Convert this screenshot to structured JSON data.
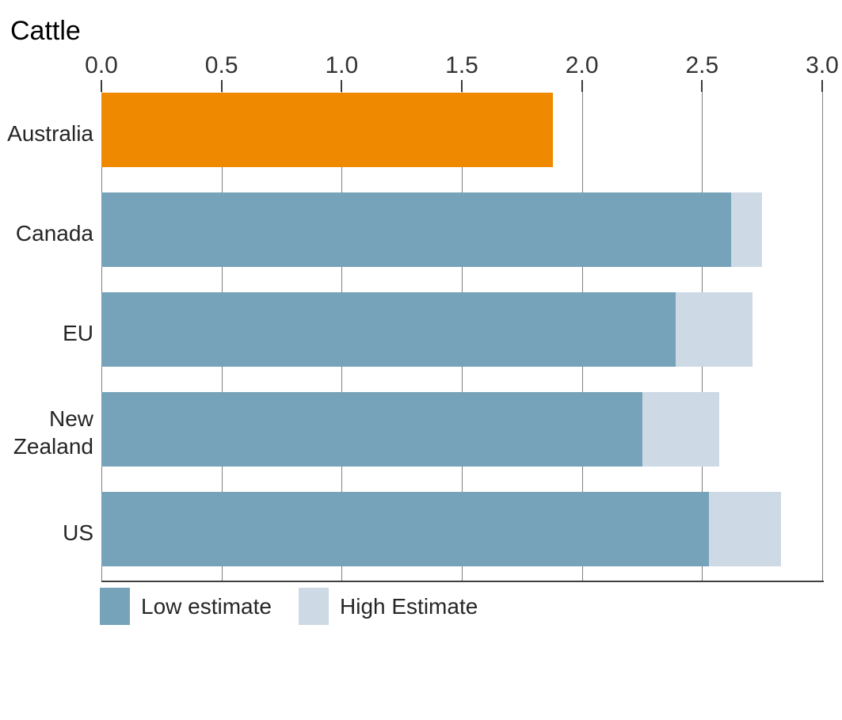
{
  "title": "Cattle",
  "colors": {
    "australia_bar": "#EF8A00",
    "low_estimate": "#76A3B9",
    "high_estimate": "#CDD9E4",
    "gridline": "#7F7F7F",
    "tick": "#3A3A3A",
    "axis_line": "#404040",
    "text": "#262626"
  },
  "chart_data": {
    "type": "bar",
    "orientation": "horizontal",
    "stacked": true,
    "title": "Cattle",
    "categories": [
      "Australia",
      "Canada",
      "EU",
      "New Zealand",
      "US"
    ],
    "series": [
      {
        "name": "Low estimate",
        "values": [
          1.88,
          2.62,
          2.39,
          2.25,
          2.53
        ]
      },
      {
        "name": "High Estimate",
        "values": [
          null,
          2.75,
          2.71,
          2.57,
          2.83
        ]
      }
    ],
    "high_is_total": true,
    "xlim": [
      0,
      3
    ],
    "xticks": [
      0,
      0.5,
      1,
      1.5,
      2,
      2.5,
      3
    ],
    "xtick_format": "one_decimal",
    "highlight": {
      "category": "Australia",
      "color": "#EF8A00"
    },
    "legend_position": "bottom-left",
    "gridlines": "vertical",
    "axis_position": "top"
  }
}
